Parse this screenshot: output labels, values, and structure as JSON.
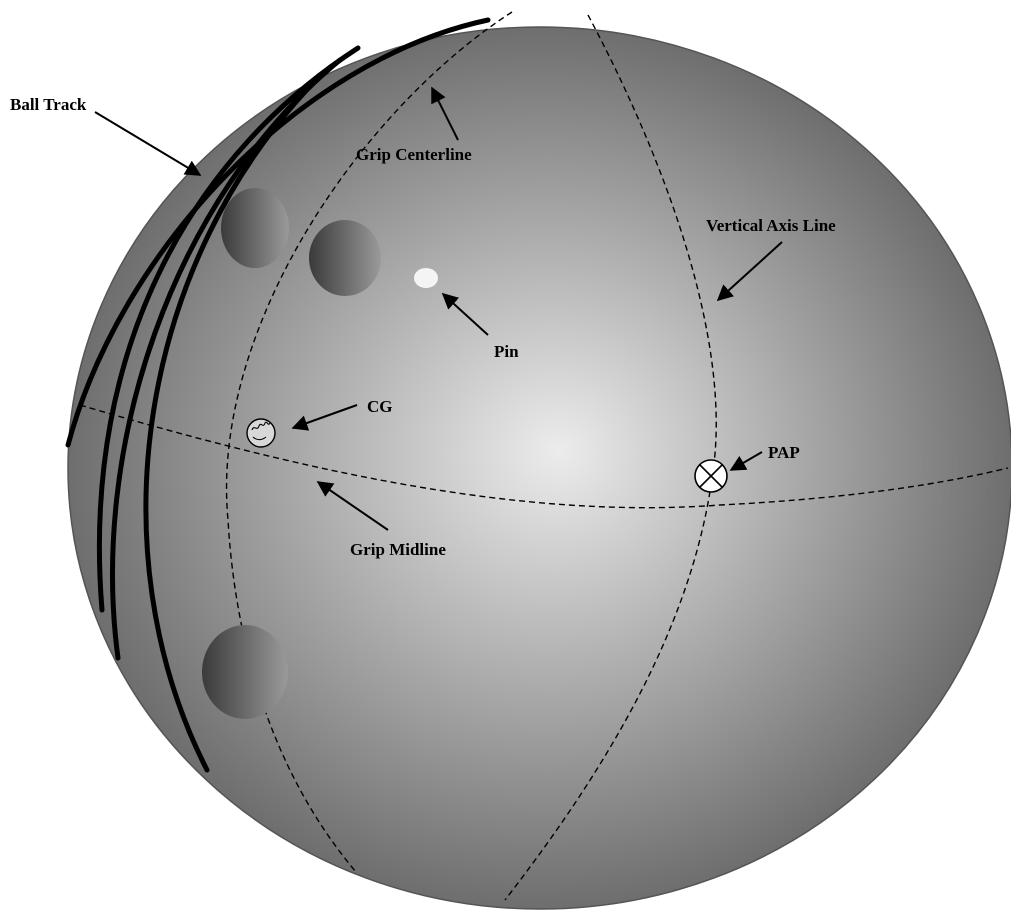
{
  "labels": {
    "ball_track": "Ball Track",
    "grip_centerline": "Grip Centerline",
    "vertical_axis_line": "Vertical Axis Line",
    "pin": "Pin",
    "cg": "CG",
    "pap": "PAP",
    "grip_midline": "Grip Midline"
  },
  "colors": {
    "ball_center": "#ececec",
    "ball_edge": "#6e6e6e",
    "hole_dark": "#3a3a3a",
    "hole_light": "#9a9a9a",
    "pin": "#f4f4f4",
    "line": "#000000"
  }
}
